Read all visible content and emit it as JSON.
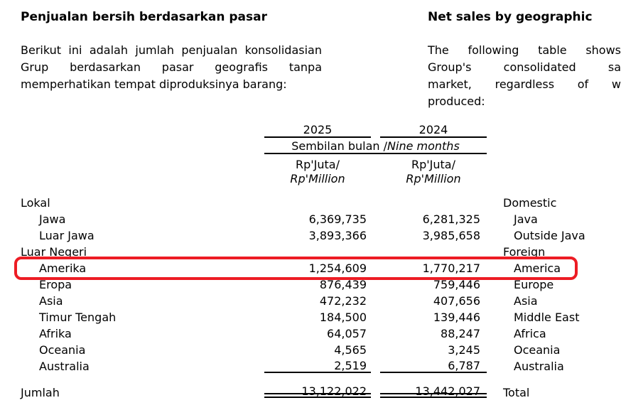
{
  "left": {
    "heading": "Penjualan bersih berdasarkan pasar",
    "paragraph_lines": [
      "Berikut ini adalah jumlah penjualan konsolidasian",
      "Grup berdasarkan pasar geografis tanpa",
      "memperhatikan tempat diproduksinya barang:"
    ]
  },
  "right": {
    "heading": "Net sales by geographic",
    "paragraph_lines": [
      "The following table shows",
      "Group's consolidated sa",
      "market, regardless of w",
      "produced:"
    ]
  },
  "table": {
    "header": {
      "year_col_1": "2025",
      "year_col_2": "2024",
      "period_id": "Sembilan bulan /",
      "period_en": "Nine months",
      "unit_id": "Rp'Juta/",
      "unit_en": "Rp'Million"
    },
    "rows": [
      {
        "label": "Lokal",
        "v2025": "",
        "v2024": "",
        "en": "Domestic"
      },
      {
        "label": "Jawa",
        "v2025": "6,369,735",
        "v2024": "6,281,325",
        "en": "Java"
      },
      {
        "label": "Luar Jawa",
        "v2025": "3,893,366",
        "v2024": "3,985,658",
        "en": "Outside Java"
      },
      {
        "label": "Luar Negeri",
        "v2025": "",
        "v2024": "",
        "en": "Foreign"
      },
      {
        "label": "Amerika",
        "v2025": "1,254,609",
        "v2024": "1,770,217",
        "en": "America"
      },
      {
        "label": "Eropa",
        "v2025": "876,439",
        "v2024": "759,446",
        "en": "Europe"
      },
      {
        "label": "Asia",
        "v2025": "472,232",
        "v2024": "407,656",
        "en": "Asia"
      },
      {
        "label": "Timur Tengah",
        "v2025": "184,500",
        "v2024": "139,446",
        "en": "Middle East"
      },
      {
        "label": "Afrika",
        "v2025": "64,057",
        "v2024": "88,247",
        "en": "Africa"
      },
      {
        "label": "Oceania",
        "v2025": "4,565",
        "v2024": "3,245",
        "en": "Oceania"
      },
      {
        "label": "Australia",
        "v2025": "2,519",
        "v2024": "6,787",
        "en": "Australia"
      }
    ],
    "total_row": {
      "label": "Jumlah",
      "v2025": "13,122,022",
      "v2024": "13,442,027",
      "en": "Total"
    }
  },
  "annotation": {
    "highlighted_row": "Amerika / America",
    "highlight_color": "#ed1c24"
  }
}
